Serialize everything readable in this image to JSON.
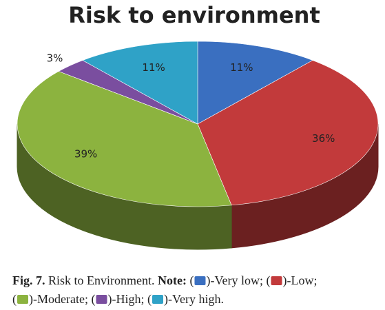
{
  "chart_data": {
    "type": "pie3d",
    "title": "Risk to environment",
    "categories": [
      "Very low",
      "Low",
      "Moderate",
      "High",
      "Very high"
    ],
    "values": [
      11,
      36,
      39,
      3,
      11
    ],
    "value_labels": [
      "11%",
      "36%",
      "39%",
      "3%",
      "11%"
    ],
    "colors": [
      "#3a6fc0",
      "#c23a3b",
      "#8cb33f",
      "#7a4e9f",
      "#2fa2c7"
    ],
    "caption": {
      "figure": "Fig. 7.",
      "text": "Risk to Environment.",
      "note": "Note:",
      "open": "(",
      "close": ")-",
      "separators": [
        ";",
        ";",
        ";",
        ";",
        "."
      ]
    }
  }
}
